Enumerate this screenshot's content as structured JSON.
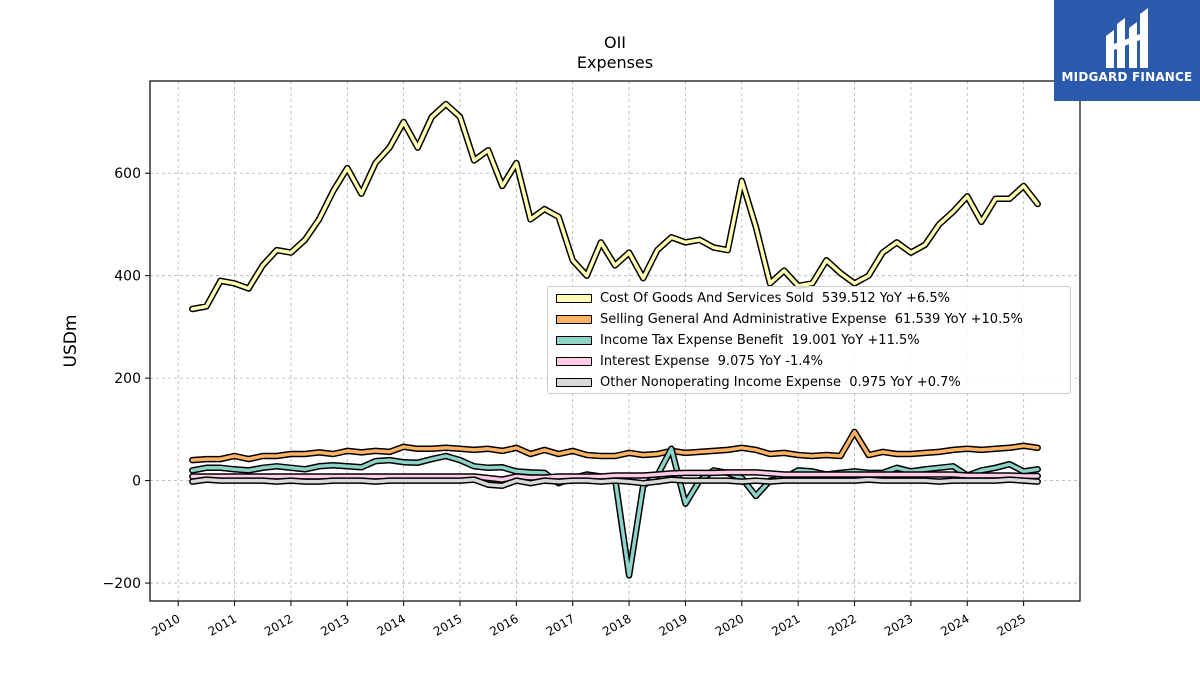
{
  "brand": {
    "name": "MIDGARD FINANCE",
    "color": "#2b5aad"
  },
  "chart_data": {
    "type": "line",
    "title": "OII",
    "subtitle": "Expenses",
    "xlabel": "",
    "ylabel": "USDm",
    "xlim": [
      2009.5,
      2026.0
    ],
    "ylim": [
      -235,
      780
    ],
    "xticks": [
      "2010",
      "2011",
      "2012",
      "2013",
      "2014",
      "2015",
      "2016",
      "2017",
      "2018",
      "2019",
      "2020",
      "2021",
      "2022",
      "2023",
      "2024",
      "2025"
    ],
    "yticks": [
      -200,
      0,
      200,
      400,
      600
    ],
    "grid": true,
    "legend_position": "center-right",
    "series": [
      {
        "name": "Cost Of Goods And Services Sold",
        "legend": "Cost Of Goods And Services Sold  539.512 YoY +6.5%",
        "color": "#ffffb3",
        "x": [
          2010.25,
          2010.5,
          2010.75,
          2011.0,
          2011.25,
          2011.5,
          2011.75,
          2012.0,
          2012.25,
          2012.5,
          2012.75,
          2013.0,
          2013.25,
          2013.5,
          2013.75,
          2014.0,
          2014.25,
          2014.5,
          2014.75,
          2015.0,
          2015.25,
          2015.5,
          2015.75,
          2016.0,
          2016.25,
          2016.5,
          2016.75,
          2017.0,
          2017.25,
          2017.5,
          2017.75,
          2018.0,
          2018.25,
          2018.5,
          2018.75,
          2019.0,
          2019.25,
          2019.5,
          2019.75,
          2020.0,
          2020.25,
          2020.5,
          2020.75,
          2021.0,
          2021.25,
          2021.5,
          2021.75,
          2022.0,
          2022.25,
          2022.5,
          2022.75,
          2023.0,
          2023.25,
          2023.5,
          2023.75,
          2024.0,
          2024.25,
          2024.5,
          2024.75,
          2025.0,
          2025.25
        ],
        "values": [
          335,
          340,
          390,
          385,
          375,
          420,
          450,
          445,
          470,
          510,
          565,
          610,
          560,
          620,
          650,
          700,
          650,
          710,
          735,
          710,
          625,
          645,
          575,
          620,
          510,
          530,
          515,
          430,
          400,
          465,
          420,
          445,
          395,
          450,
          475,
          465,
          470,
          455,
          450,
          585,
          495,
          385,
          410,
          380,
          385,
          430,
          405,
          385,
          400,
          445,
          465,
          445,
          460,
          500,
          525,
          555,
          505,
          550,
          550,
          575,
          540
        ]
      },
      {
        "name": "Selling General And Administrative Expense",
        "legend": "Selling General And Administrative Expense  61.539 YoY +10.5%",
        "color": "#fdb462",
        "x": [
          2010.25,
          2010.5,
          2010.75,
          2011.0,
          2011.25,
          2011.5,
          2011.75,
          2012.0,
          2012.25,
          2012.5,
          2012.75,
          2013.0,
          2013.25,
          2013.5,
          2013.75,
          2014.0,
          2014.25,
          2014.5,
          2014.75,
          2015.0,
          2015.25,
          2015.5,
          2015.75,
          2016.0,
          2016.25,
          2016.5,
          2016.75,
          2017.0,
          2017.25,
          2017.5,
          2017.75,
          2018.0,
          2018.25,
          2018.5,
          2018.75,
          2019.0,
          2019.25,
          2019.5,
          2019.75,
          2020.0,
          2020.25,
          2020.5,
          2020.75,
          2021.0,
          2021.25,
          2021.5,
          2021.75,
          2022.0,
          2022.25,
          2022.5,
          2022.75,
          2023.0,
          2023.25,
          2023.5,
          2023.75,
          2024.0,
          2024.25,
          2024.5,
          2024.75,
          2025.0,
          2025.25
        ],
        "values": [
          40,
          42,
          42,
          48,
          42,
          48,
          48,
          52,
          52,
          55,
          52,
          58,
          55,
          58,
          56,
          66,
          62,
          62,
          64,
          62,
          60,
          62,
          58,
          64,
          52,
          60,
          52,
          58,
          50,
          48,
          48,
          54,
          50,
          52,
          58,
          54,
          56,
          58,
          60,
          64,
          60,
          52,
          54,
          50,
          48,
          50,
          48,
          95,
          50,
          56,
          52,
          52,
          54,
          56,
          60,
          62,
          60,
          62,
          64,
          68,
          64
        ]
      },
      {
        "name": "Income Tax Expense Benefit",
        "legend": "Income Tax Expense Benefit  19.001 YoY +11.5%",
        "color": "#8dd3c7",
        "x": [
          2010.25,
          2010.5,
          2010.75,
          2011.0,
          2011.25,
          2011.5,
          2011.75,
          2012.0,
          2012.25,
          2012.5,
          2012.75,
          2013.0,
          2013.25,
          2013.5,
          2013.75,
          2014.0,
          2014.25,
          2014.5,
          2014.75,
          2015.0,
          2015.25,
          2015.5,
          2015.75,
          2016.0,
          2016.25,
          2016.5,
          2016.75,
          2017.0,
          2017.25,
          2017.5,
          2017.75,
          2018.0,
          2018.25,
          2018.5,
          2018.75,
          2019.0,
          2019.25,
          2019.5,
          2019.75,
          2020.0,
          2020.25,
          2020.5,
          2020.75,
          2021.0,
          2021.25,
          2021.5,
          2021.75,
          2022.0,
          2022.25,
          2022.5,
          2022.75,
          2023.0,
          2023.25,
          2023.5,
          2023.75,
          2024.0,
          2024.25,
          2024.5,
          2024.75,
          2025.0,
          2025.25
        ],
        "values": [
          20,
          25,
          25,
          22,
          20,
          25,
          28,
          25,
          22,
          28,
          30,
          28,
          26,
          38,
          40,
          36,
          35,
          42,
          48,
          40,
          28,
          25,
          26,
          18,
          16,
          15,
          -5,
          5,
          12,
          8,
          5,
          -185,
          -10,
          10,
          62,
          -45,
          0,
          20,
          15,
          5,
          -30,
          0,
          5,
          20,
          18,
          12,
          15,
          18,
          15,
          15,
          25,
          18,
          22,
          25,
          28,
          10,
          20,
          25,
          32,
          18,
          22
        ]
      },
      {
        "name": "Interest Expense",
        "legend": "Interest Expense  9.075 YoY -1.4%",
        "color": "#fccde5",
        "x": [
          2010.25,
          2010.5,
          2010.75,
          2011.0,
          2011.25,
          2011.5,
          2011.75,
          2012.0,
          2012.25,
          2012.5,
          2012.75,
          2013.0,
          2013.25,
          2013.5,
          2013.75,
          2014.0,
          2014.25,
          2014.5,
          2014.75,
          2015.0,
          2015.25,
          2015.5,
          2015.75,
          2016.0,
          2016.25,
          2016.5,
          2016.75,
          2017.0,
          2017.25,
          2017.5,
          2017.75,
          2018.0,
          2018.25,
          2018.5,
          2018.75,
          2019.0,
          2019.25,
          2019.5,
          2019.75,
          2020.0,
          2020.25,
          2020.5,
          2020.75,
          2021.0,
          2021.25,
          2021.5,
          2021.75,
          2022.0,
          2022.25,
          2022.5,
          2022.75,
          2023.0,
          2023.25,
          2023.5,
          2023.75,
          2024.0,
          2024.25,
          2024.5,
          2024.75,
          2025.0,
          2025.25
        ],
        "values": [
          8,
          8,
          8,
          8,
          8,
          8,
          8,
          8,
          8,
          8,
          8,
          8,
          8,
          8,
          8,
          8,
          8,
          8,
          8,
          8,
          8,
          5,
          2,
          8,
          6,
          6,
          8,
          8,
          8,
          8,
          10,
          10,
          10,
          12,
          14,
          15,
          15,
          15,
          16,
          16,
          16,
          14,
          12,
          12,
          12,
          12,
          12,
          12,
          12,
          12,
          12,
          12,
          12,
          12,
          12,
          10,
          10,
          10,
          10,
          9,
          9
        ]
      },
      {
        "name": "Other Nonoperating Income Expense",
        "legend": "Other Nonoperating Income Expense  0.975 YoY +0.7%",
        "color": "#d9d9d9",
        "x": [
          2010.25,
          2010.5,
          2010.75,
          2011.0,
          2011.25,
          2011.5,
          2011.75,
          2012.0,
          2012.25,
          2012.5,
          2012.75,
          2013.0,
          2013.25,
          2013.5,
          2013.75,
          2014.0,
          2014.25,
          2014.5,
          2014.75,
          2015.0,
          2015.25,
          2015.5,
          2015.75,
          2016.0,
          2016.25,
          2016.5,
          2016.75,
          2017.0,
          2017.25,
          2017.5,
          2017.75,
          2018.0,
          2018.25,
          2018.5,
          2018.75,
          2019.0,
          2019.25,
          2019.5,
          2019.75,
          2020.0,
          2020.25,
          2020.5,
          2020.75,
          2021.0,
          2021.25,
          2021.5,
          2021.75,
          2022.0,
          2022.25,
          2022.5,
          2022.75,
          2023.0,
          2023.25,
          2023.5,
          2023.75,
          2024.0,
          2024.25,
          2024.5,
          2024.75,
          2025.0,
          2025.25
        ],
        "values": [
          -2,
          2,
          0,
          0,
          0,
          0,
          -2,
          0,
          -2,
          -2,
          0,
          0,
          0,
          -2,
          0,
          0,
          0,
          0,
          0,
          0,
          2,
          -8,
          -10,
          0,
          -5,
          0,
          -2,
          0,
          0,
          -2,
          0,
          -2,
          -5,
          -2,
          2,
          0,
          0,
          0,
          0,
          -2,
          0,
          -2,
          0,
          0,
          0,
          0,
          0,
          0,
          2,
          0,
          0,
          0,
          0,
          -2,
          0,
          0,
          0,
          0,
          2,
          0,
          -2
        ]
      }
    ]
  }
}
